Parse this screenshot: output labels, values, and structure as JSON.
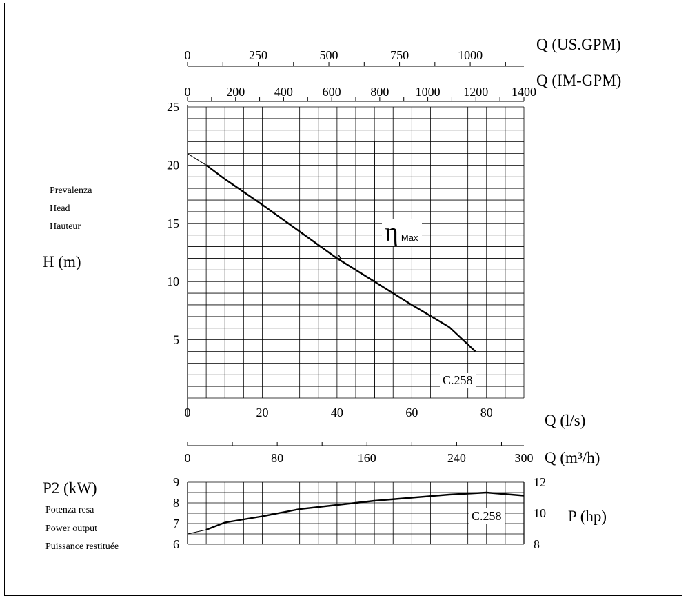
{
  "chart_data": [
    {
      "type": "line",
      "name": "head_curve",
      "x_label": "Q (l/s)",
      "x_ticks": [
        "0",
        "20",
        "40",
        "60",
        "80"
      ],
      "x_range": [
        0,
        90
      ],
      "y_label": "H (m)",
      "y_title_lines": [
        "Prevalenza",
        "Head",
        "Hauteur"
      ],
      "y_ticks": [
        "5",
        "10",
        "15",
        "20",
        "25"
      ],
      "y_range": [
        0,
        25
      ],
      "grid": true,
      "series": [
        {
          "name": "C.258",
          "x": [
            0,
            5,
            10,
            20,
            30,
            40,
            50,
            60,
            70,
            77
          ],
          "y": [
            21,
            20,
            18.8,
            16.6,
            14.3,
            12,
            10,
            8,
            6.1,
            4
          ]
        }
      ],
      "efficiency_marker": {
        "x": 50,
        "symbol": "η",
        "label": "Max"
      },
      "curve_label": "C.258",
      "top_axes": [
        {
          "label": "Q (US.GPM)",
          "ticks": [
            "0",
            "250",
            "500",
            "750",
            "1000"
          ],
          "values": [
            0,
            250,
            500,
            750,
            1000
          ],
          "range": [
            0,
            1190
          ]
        },
        {
          "label": "Q (IM-GPM)",
          "ticks": [
            "0",
            "200",
            "400",
            "600",
            "800",
            "1000",
            "1200",
            "1400"
          ],
          "values": [
            0,
            200,
            400,
            600,
            800,
            1000,
            1200,
            1400
          ],
          "range": [
            0,
            1400
          ]
        }
      ],
      "bottom_axis_extra": {
        "label": "Q (m³/h)",
        "ticks": [
          "0",
          "80",
          "160",
          "240",
          "300"
        ],
        "values": [
          0,
          80,
          160,
          240,
          300
        ],
        "range": [
          0,
          300
        ]
      }
    },
    {
      "type": "line",
      "name": "power_curve",
      "y_label": "P2 (kW)",
      "y_title_lines": [
        "Potenza resa",
        "Power output",
        "Puissance restituée"
      ],
      "y_ticks": [
        "6",
        "7",
        "8",
        "9"
      ],
      "y_range": [
        6,
        9
      ],
      "y2_label": "P (hp)",
      "y2_ticks": [
        "8",
        "10",
        "12"
      ],
      "y2_range": [
        8,
        12
      ],
      "x_range": [
        0,
        90
      ],
      "grid": true,
      "series": [
        {
          "name": "C.258",
          "x": [
            0,
            5,
            10,
            20,
            30,
            40,
            50,
            60,
            70,
            80
          ],
          "y": [
            6.5,
            6.7,
            7.05,
            7.35,
            7.7,
            7.9,
            8.1,
            8.25,
            8.4,
            8.5
          ]
        }
      ],
      "series_end": {
        "x": [
          80,
          90
        ],
        "y": [
          8.5,
          8.35
        ]
      },
      "curve_label": "C.258"
    }
  ]
}
